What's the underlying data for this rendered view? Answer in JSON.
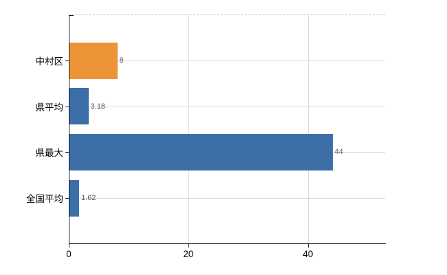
{
  "chart_data": {
    "type": "bar",
    "orientation": "horizontal",
    "title": "",
    "xlabel": "",
    "ylabel": "",
    "categories": [
      "中村区",
      "県平均",
      "県最大",
      "全国平均"
    ],
    "values": [
      8,
      3.18,
      44,
      1.62
    ],
    "value_labels": [
      "8",
      "3.18",
      "44",
      "1.62"
    ],
    "bar_colors": [
      "#EE9438",
      "#3C6EA8",
      "#3C6EA8",
      "#3C6EA8"
    ],
    "x_ticks": [
      0,
      20,
      40
    ],
    "x_tick_labels": [
      "0",
      "20",
      "40"
    ],
    "xlim": [
      0,
      52.9
    ],
    "grid": "on",
    "legend": "none",
    "colors": {
      "accent_orange": "#EE9438",
      "accent_blue": "#3C6EA8",
      "gridline": "#D9D9D9",
      "top_dashed_line": "#CCCCCC",
      "axis": "#1A1A1A",
      "value_label_text": "#595959",
      "tick_label_text": "#000000",
      "background": "#FFFFFF"
    }
  }
}
